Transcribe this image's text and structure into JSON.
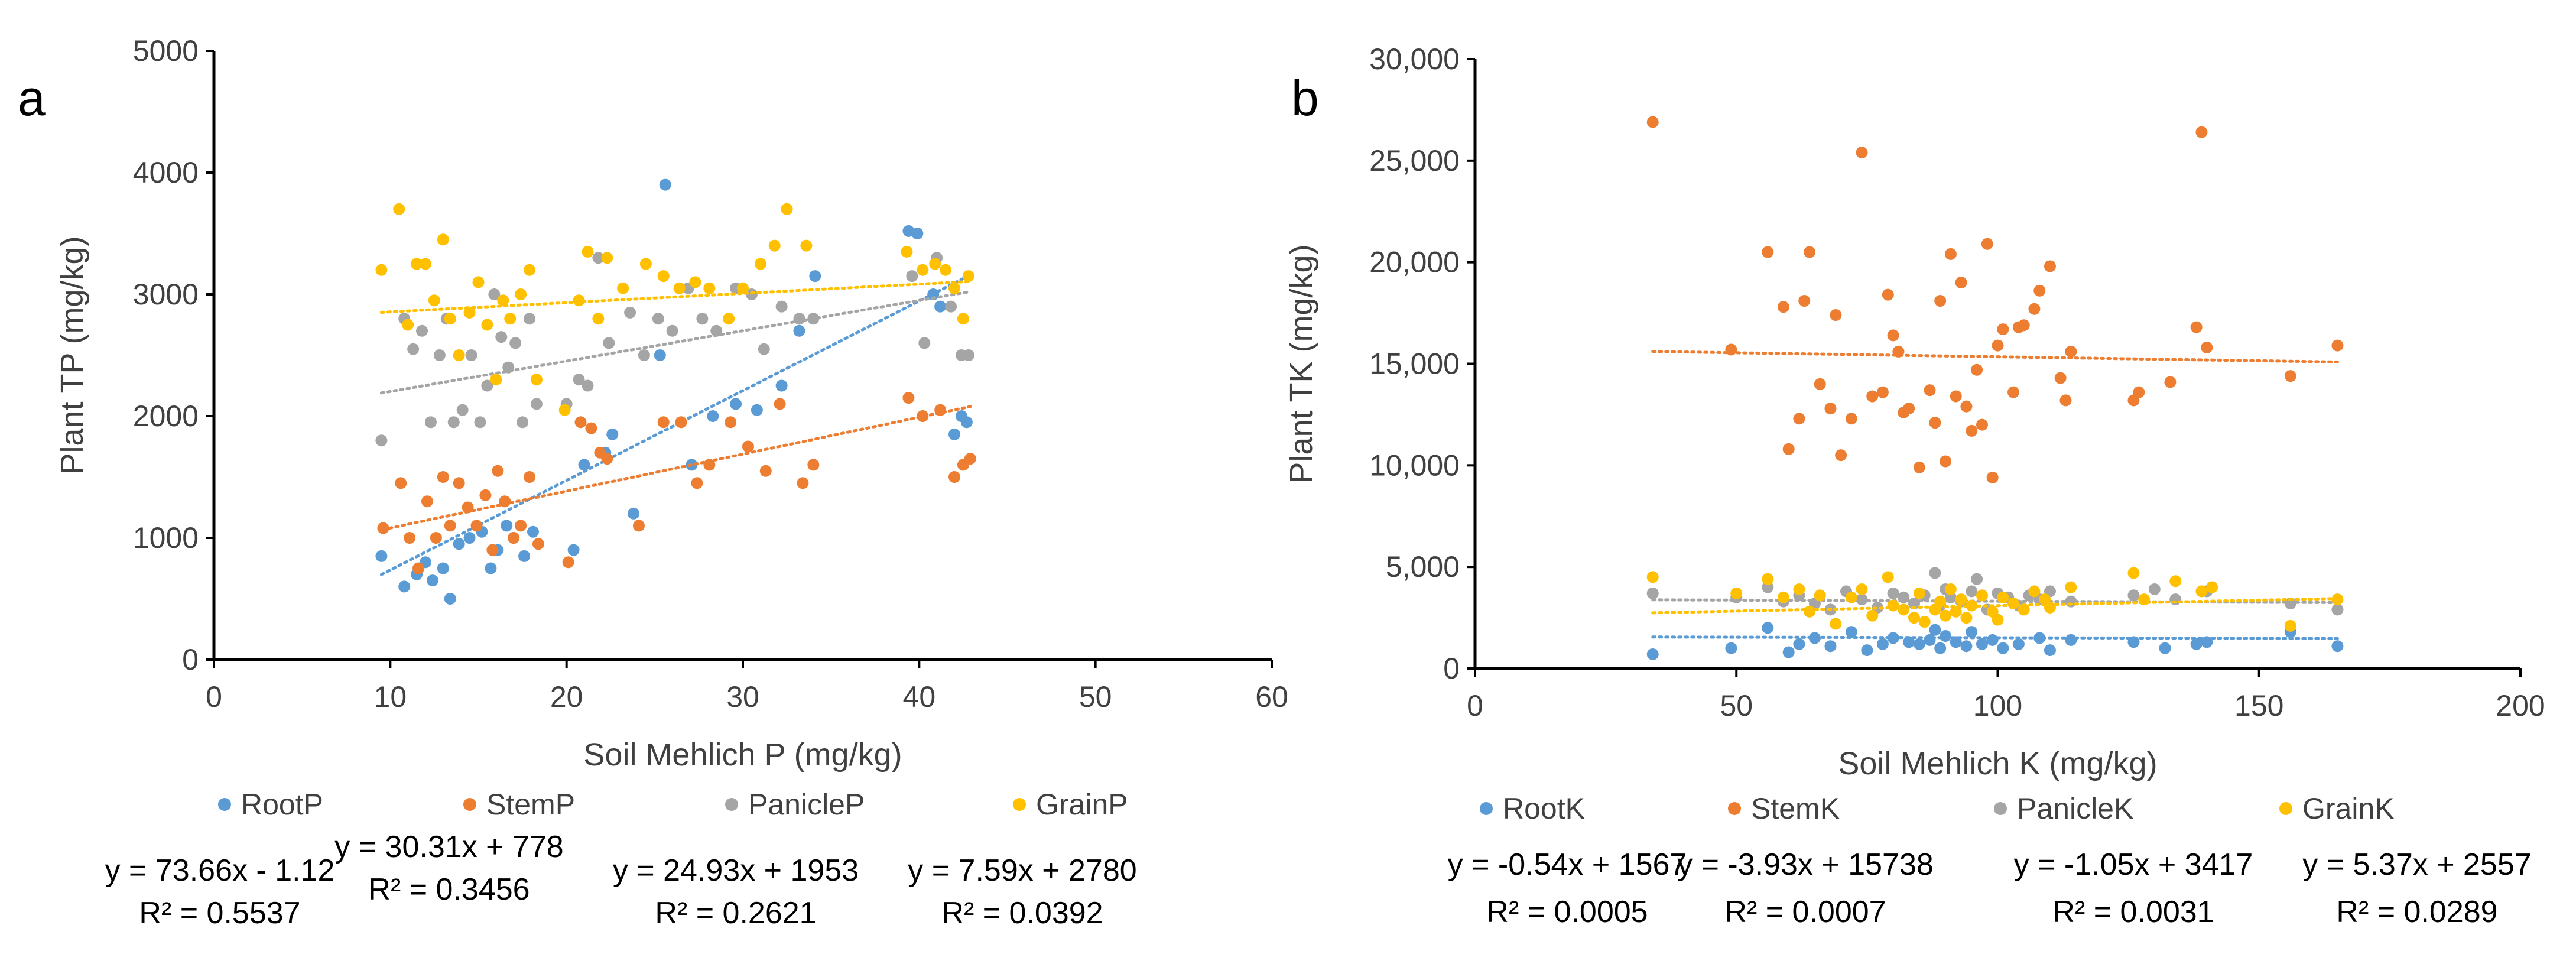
{
  "chart_data": [
    {
      "type": "scatter",
      "panel_label": "a",
      "title": "",
      "xlabel": "Soil Mehlich P (mg/kg)",
      "ylabel": "Plant TP (mg/kg)",
      "xlim": [
        0,
        60
      ],
      "ylim": [
        0,
        5000
      ],
      "xticks": [
        0,
        10,
        20,
        30,
        40,
        50,
        60
      ],
      "yticks": [
        0,
        1000,
        2000,
        3000,
        4000,
        5000
      ],
      "xtick_labels": [
        "0",
        "10",
        "20",
        "30",
        "40",
        "50",
        "60"
      ],
      "ytick_labels": [
        "0",
        "1000",
        "2000",
        "3000",
        "4000",
        "5000"
      ],
      "grid": false,
      "legend_position": "bottom",
      "series": [
        {
          "name": "RootP",
          "color": "#5B9BD5",
          "trend": {
            "slope": 73.66,
            "intercept": -1.12
          },
          "equation": "y = 73.66x - 1.12",
          "r2": "R² = 0.5537",
          "x": [
            9.5,
            10.8,
            11.5,
            12.0,
            12.4,
            13.0,
            13.4,
            13.9,
            14.5,
            15.2,
            15.7,
            16.1,
            16.6,
            17.0,
            17.6,
            18.1,
            20.4,
            21.0,
            22.2,
            22.6,
            23.8,
            25.3,
            25.6,
            27.1,
            28.3,
            29.6,
            30.8,
            32.2,
            33.2,
            34.1,
            39.4,
            39.9,
            40.8,
            41.2,
            42.0,
            42.4,
            42.7
          ],
          "y": [
            850,
            600,
            700,
            800,
            650,
            750,
            500,
            950,
            1000,
            1050,
            750,
            900,
            1100,
            1000,
            850,
            1050,
            900,
            1600,
            1700,
            1850,
            1200,
            2500,
            3900,
            1600,
            2000,
            2100,
            2050,
            2250,
            2700,
            3150,
            3520,
            3500,
            3000,
            2900,
            1850,
            2000,
            1950
          ]
        },
        {
          "name": "StemP",
          "color": "#ED7D31",
          "trend": {
            "slope": 30.31,
            "intercept": 778
          },
          "equation": "y = 30.31x + 778",
          "r2": "R² = 0.3456",
          "x": [
            9.6,
            10.6,
            11.1,
            11.6,
            12.1,
            12.6,
            13.0,
            13.4,
            13.9,
            14.4,
            14.9,
            15.4,
            15.8,
            16.1,
            16.5,
            17.0,
            17.4,
            17.9,
            18.4,
            20.1,
            20.8,
            21.4,
            21.9,
            22.3,
            24.1,
            25.5,
            26.5,
            27.4,
            28.1,
            29.3,
            30.3,
            31.3,
            32.1,
            33.4,
            34.0,
            39.4,
            40.2,
            41.2,
            42.0,
            42.5,
            42.9
          ],
          "y": [
            1080,
            1450,
            1000,
            750,
            1300,
            1000,
            1500,
            1100,
            1450,
            1250,
            1100,
            1350,
            900,
            1550,
            1300,
            1000,
            1100,
            1500,
            950,
            800,
            1950,
            1900,
            1700,
            1650,
            1100,
            1950,
            1950,
            1450,
            1600,
            1950,
            1750,
            1550,
            2100,
            1450,
            1600,
            2150,
            2000,
            2050,
            1500,
            1600,
            1650
          ]
        },
        {
          "name": "PanicleP",
          "color": "#A5A5A5",
          "trend": {
            "slope": 24.93,
            "intercept": 1953
          },
          "equation": "y = 24.93x + 1953",
          "r2": "R² = 0.2621",
          "x": [
            9.5,
            10.8,
            11.3,
            11.8,
            12.3,
            12.8,
            13.2,
            13.6,
            14.1,
            14.6,
            15.1,
            15.5,
            15.9,
            16.3,
            16.7,
            17.1,
            17.5,
            17.9,
            18.3,
            20.0,
            20.7,
            21.2,
            21.8,
            22.4,
            23.6,
            24.4,
            25.2,
            26.0,
            26.9,
            27.7,
            28.5,
            29.6,
            30.5,
            31.2,
            32.2,
            33.2,
            34.0,
            39.6,
            40.3,
            41.0,
            41.8,
            42.4,
            42.8
          ],
          "y": [
            1800,
            2800,
            2550,
            2700,
            1950,
            2500,
            2800,
            1950,
            2050,
            2500,
            1950,
            2250,
            3000,
            2650,
            2400,
            2600,
            1950,
            2800,
            2100,
            2100,
            2300,
            2250,
            3300,
            2600,
            2850,
            2500,
            2800,
            2700,
            3050,
            2800,
            2700,
            3050,
            3000,
            2550,
            2900,
            2800,
            2800,
            3150,
            2600,
            3300,
            2900,
            2500,
            2500
          ]
        },
        {
          "name": "GrainP",
          "color": "#FFC000",
          "trend": {
            "slope": 7.59,
            "intercept": 2780
          },
          "equation": "y = 7.59x + 2780",
          "r2": "R² = 0.0392",
          "x": [
            9.5,
            10.5,
            11.0,
            11.5,
            12.0,
            12.5,
            13.0,
            13.4,
            13.9,
            14.5,
            15.0,
            15.5,
            16.0,
            16.4,
            16.8,
            17.4,
            17.9,
            18.3,
            19.9,
            20.7,
            21.2,
            21.8,
            22.3,
            23.2,
            24.5,
            25.5,
            26.4,
            27.3,
            28.1,
            29.2,
            30.0,
            31.0,
            31.8,
            32.5,
            33.6,
            39.3,
            40.2,
            40.9,
            41.5,
            42.0,
            42.5,
            42.8
          ],
          "y": [
            3200,
            3700,
            2750,
            3250,
            3250,
            2950,
            3450,
            2800,
            2500,
            2850,
            3100,
            2750,
            2300,
            2950,
            2800,
            3000,
            3200,
            2300,
            2050,
            2950,
            3350,
            2800,
            3300,
            3050,
            3250,
            3150,
            3050,
            3100,
            3050,
            2800,
            3050,
            3250,
            3400,
            3700,
            3400,
            3350,
            3200,
            3250,
            3200,
            3050,
            2800,
            3150
          ]
        }
      ]
    },
    {
      "type": "scatter",
      "panel_label": "b",
      "title": "",
      "xlabel": "Soil Mehlich K (mg/kg)",
      "ylabel": "Plant TK (mg/kg)",
      "xlim": [
        0,
        200
      ],
      "ylim": [
        0,
        30000
      ],
      "xticks": [
        0,
        50,
        100,
        150,
        200
      ],
      "yticks": [
        0,
        5000,
        10000,
        15000,
        20000,
        25000,
        30000
      ],
      "xtick_labels": [
        "0",
        "50",
        "100",
        "150",
        "200"
      ],
      "ytick_labels": [
        "0",
        "5,000",
        "10,000",
        "15,000",
        "20,000",
        "25,000",
        "30,000"
      ],
      "grid": false,
      "legend_position": "bottom",
      "series": [
        {
          "name": "RootK",
          "color": "#5B9BD5",
          "trend": {
            "slope": -0.54,
            "intercept": 1567
          },
          "equation": "y = -0.54x + 1567",
          "r2": "R² = 0.0005",
          "x": [
            34,
            49,
            56,
            60,
            62,
            65,
            68,
            72,
            75,
            78,
            80,
            83,
            85,
            87,
            88,
            89,
            90,
            92,
            94,
            95,
            97,
            99,
            101,
            104,
            108,
            110,
            114,
            126,
            132,
            138,
            140,
            156,
            165
          ],
          "y": [
            700,
            1000,
            2000,
            800,
            1200,
            1500,
            1100,
            1800,
            900,
            1200,
            1500,
            1300,
            1200,
            1400,
            1900,
            1000,
            1600,
            1300,
            1100,
            1800,
            1200,
            1400,
            1000,
            1200,
            1500,
            900,
            1400,
            1300,
            1000,
            1200,
            1300,
            1800,
            1100
          ]
        },
        {
          "name": "StemK",
          "color": "#ED7D31",
          "trend": {
            "slope": -3.93,
            "intercept": 15738
          },
          "equation": "y = -3.93x + 15738",
          "r2": "R² = 0.0007",
          "x": [
            34,
            49,
            56,
            59,
            60,
            62,
            63,
            64,
            66,
            68,
            69,
            70,
            72,
            74,
            76,
            78,
            79,
            80,
            81,
            82,
            83,
            85,
            87,
            88,
            89,
            90,
            91,
            92,
            93,
            94,
            95,
            96,
            97,
            98,
            99,
            100,
            101,
            103,
            104,
            105,
            107,
            108,
            110,
            112,
            113,
            114,
            126,
            127,
            133,
            138,
            139,
            140,
            156,
            165
          ],
          "y": [
            26900,
            15700,
            20500,
            17800,
            10800,
            12300,
            18100,
            20500,
            14000,
            12800,
            17400,
            10500,
            12300,
            25400,
            13400,
            13600,
            18400,
            16400,
            15600,
            12600,
            12800,
            9900,
            13700,
            12100,
            18100,
            10200,
            20400,
            13400,
            19000,
            12900,
            11700,
            14700,
            12000,
            20900,
            9400,
            15900,
            16700,
            13600,
            16800,
            16900,
            17700,
            18600,
            19800,
            14300,
            13200,
            15600,
            13200,
            13600,
            14100,
            16800,
            26400,
            15800,
            14400,
            15900
          ]
        },
        {
          "name": "PanicleK",
          "color": "#A5A5A5",
          "trend": {
            "slope": -1.05,
            "intercept": 3417
          },
          "equation": "y = -1.05x + 3417",
          "r2": "R² = 0.0031",
          "x": [
            34,
            50,
            56,
            59,
            62,
            65,
            68,
            71,
            74,
            77,
            80,
            82,
            84,
            86,
            88,
            89,
            90,
            91,
            93,
            95,
            96,
            98,
            100,
            102,
            104,
            106,
            108,
            110,
            114,
            126,
            130,
            134,
            140,
            156,
            165
          ],
          "y": [
            3700,
            3500,
            4000,
            3300,
            3600,
            3200,
            2900,
            3800,
            3400,
            3000,
            3700,
            3500,
            3200,
            3600,
            4700,
            3100,
            3900,
            3500,
            3300,
            3800,
            4400,
            2900,
            3700,
            3500,
            3100,
            3600,
            3400,
            3800,
            3300,
            3600,
            3900,
            3400,
            3800,
            3200,
            2900
          ]
        },
        {
          "name": "GrainK",
          "color": "#FFC000",
          "trend": {
            "slope": 5.37,
            "intercept": 2557
          },
          "equation": "y = 5.37x + 2557",
          "r2": "R² = 0.0289",
          "x": [
            34,
            50,
            56,
            59,
            62,
            64,
            66,
            69,
            72,
            74,
            76,
            79,
            80,
            82,
            84,
            85,
            86,
            88,
            89,
            90,
            91,
            92,
            93,
            94,
            95,
            97,
            99,
            100,
            101,
            103,
            105,
            107,
            109,
            110,
            114,
            126,
            128,
            134,
            139,
            141,
            156,
            165
          ],
          "y": [
            4500,
            3700,
            4400,
            3500,
            3900,
            2800,
            3600,
            2200,
            3500,
            3900,
            2600,
            4500,
            3100,
            2900,
            2500,
            3700,
            2300,
            2900,
            3300,
            2600,
            3900,
            2800,
            3400,
            2500,
            3100,
            3600,
            2800,
            2400,
            3500,
            3200,
            2900,
            3800,
            3400,
            3000,
            4000,
            4700,
            3400,
            4300,
            3800,
            4000,
            2100,
            3400
          ]
        }
      ]
    }
  ]
}
